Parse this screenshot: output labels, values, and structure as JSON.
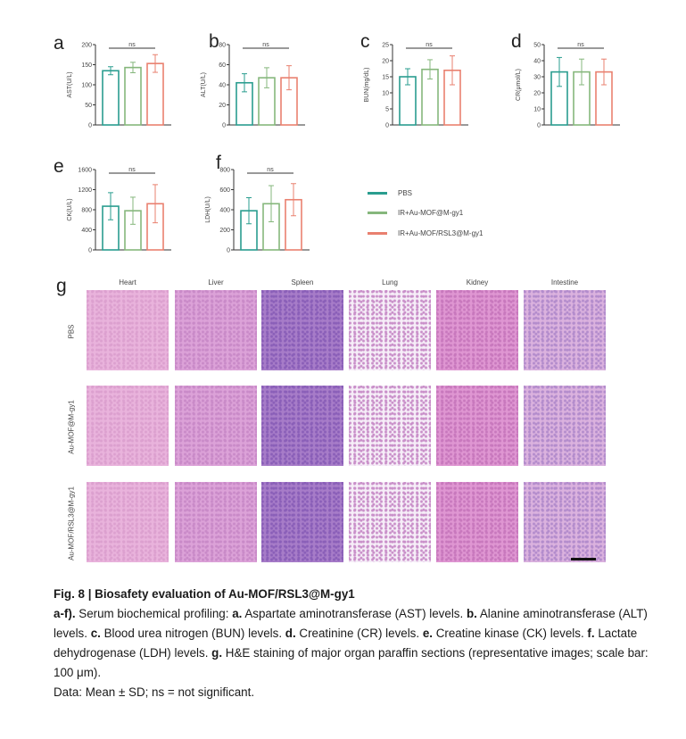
{
  "panel_letters": {
    "a": "a",
    "b": "b",
    "c": "c",
    "d": "d",
    "e": "e",
    "f": "f",
    "g": "g"
  },
  "legend": [
    {
      "label": "PBS",
      "color": "#2a9d8f"
    },
    {
      "label": "IR+Au-MOF@M-gy1",
      "color": "#86b77c"
    },
    {
      "label": "IR+Au-MOF/RSL3@M-gy1",
      "color": "#e9806f"
    }
  ],
  "chart_data": [
    {
      "type": "bar",
      "panel": "a",
      "ylabel": "AST(U/L)",
      "ylim": [
        0,
        200
      ],
      "yticks": [
        0,
        50,
        100,
        150,
        200
      ],
      "significance": "ns",
      "series": [
        {
          "name": "PBS",
          "value": 135,
          "sd": 10
        },
        {
          "name": "IR+Au-MOF@M-gy1",
          "value": 143,
          "sd": 13
        },
        {
          "name": "IR+Au-MOF/RSL3@M-gy1",
          "value": 153,
          "sd": 22
        }
      ]
    },
    {
      "type": "bar",
      "panel": "b",
      "ylabel": "ALT(U/L)",
      "ylim": [
        0,
        80
      ],
      "yticks": [
        0,
        20,
        40,
        60,
        80
      ],
      "significance": "ns",
      "series": [
        {
          "name": "PBS",
          "value": 42,
          "sd": 9
        },
        {
          "name": "IR+Au-MOF@M-gy1",
          "value": 47,
          "sd": 10
        },
        {
          "name": "IR+Au-MOF/RSL3@M-gy1",
          "value": 47,
          "sd": 12
        }
      ]
    },
    {
      "type": "bar",
      "panel": "c",
      "ylabel": "BUN(mg/dL)",
      "ylim": [
        0,
        25
      ],
      "yticks": [
        0,
        5,
        10,
        15,
        20,
        25
      ],
      "significance": "ns",
      "series": [
        {
          "name": "PBS",
          "value": 15,
          "sd": 2.5
        },
        {
          "name": "IR+Au-MOF@M-gy1",
          "value": 17.3,
          "sd": 3
        },
        {
          "name": "IR+Au-MOF/RSL3@M-gy1",
          "value": 17,
          "sd": 4.5
        }
      ]
    },
    {
      "type": "bar",
      "panel": "d",
      "ylabel": "CR(μmol/L)",
      "ylim": [
        0,
        50
      ],
      "yticks": [
        0,
        10,
        20,
        30,
        40,
        50
      ],
      "significance": "ns",
      "series": [
        {
          "name": "PBS",
          "value": 33,
          "sd": 9
        },
        {
          "name": "IR+Au-MOF@M-gy1",
          "value": 33,
          "sd": 8
        },
        {
          "name": "IR+Au-MOF/RSL3@M-gy1",
          "value": 33,
          "sd": 8
        }
      ]
    },
    {
      "type": "bar",
      "panel": "e",
      "ylabel": "CK(U/L)",
      "ylim": [
        0,
        1600
      ],
      "yticks": [
        0,
        400,
        800,
        1200,
        1600
      ],
      "significance": "ns",
      "series": [
        {
          "name": "PBS",
          "value": 870,
          "sd": 270
        },
        {
          "name": "IR+Au-MOF@M-gy1",
          "value": 780,
          "sd": 270
        },
        {
          "name": "IR+Au-MOF/RSL3@M-gy1",
          "value": 920,
          "sd": 380
        }
      ]
    },
    {
      "type": "bar",
      "panel": "f",
      "ylabel": "LDH(U/L)",
      "ylim": [
        0,
        800
      ],
      "yticks": [
        0,
        200,
        400,
        600,
        800
      ],
      "significance": "ns",
      "series": [
        {
          "name": "PBS",
          "value": 390,
          "sd": 130
        },
        {
          "name": "IR+Au-MOF@M-gy1",
          "value": 460,
          "sd": 180
        },
        {
          "name": "IR+Au-MOF/RSL3@M-gy1",
          "value": 500,
          "sd": 160
        }
      ]
    }
  ],
  "histology": {
    "columns": [
      "Heart",
      "Liver",
      "Spleen",
      "Lung",
      "Kidney",
      "Intestine"
    ],
    "rows": [
      "PBS",
      "Au-MOF@M-gy1",
      "Au-MOF/RSL3@M-gy1"
    ]
  },
  "caption": {
    "title": "Fig. 8 | Biosafety evaluation of Au-MOF/RSL3@M-gy1",
    "lead": "a-f).",
    "t1": " Serum biochemical profiling: ",
    "a": "a.",
    "ta": " Aspartate aminotransferase (AST) levels. ",
    "b": "b.",
    "tb": " Alanine aminotransferase (ALT) levels. ",
    "c": "c.",
    "tc": " Blood urea nitrogen (BUN) levels. ",
    "d": "d.",
    "td": " Creatinine (CR) levels. ",
    "e": "e.",
    "te": " Creatine kinase (CK) levels. ",
    "f": "f.",
    "tf": " Lactate dehydrogenase (LDH) levels. ",
    "g": "g.",
    "tg": " H&E staining of major organ paraffin sections (representative images; scale bar: 100 μm).",
    "footer": "Data: Mean ± SD; ns = not significant."
  }
}
